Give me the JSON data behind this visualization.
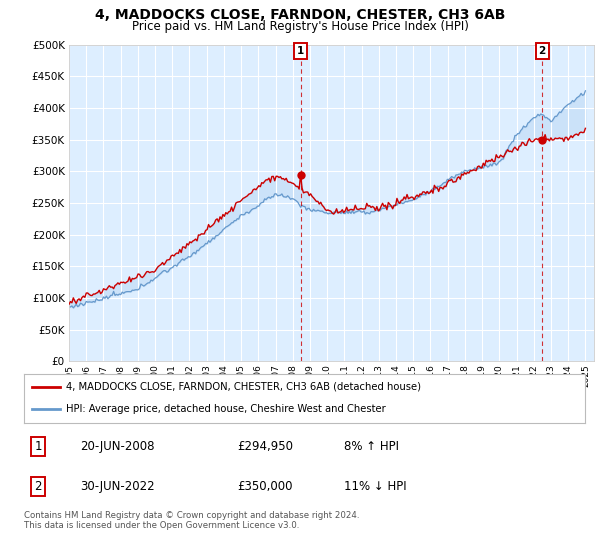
{
  "title": "4, MADDOCKS CLOSE, FARNDON, CHESTER, CH3 6AB",
  "subtitle": "Price paid vs. HM Land Registry's House Price Index (HPI)",
  "ytick_values": [
    0,
    50000,
    100000,
    150000,
    200000,
    250000,
    300000,
    350000,
    400000,
    450000,
    500000
  ],
  "ylim": [
    0,
    500000
  ],
  "xlim_start": 1995.0,
  "xlim_end": 2025.5,
  "background_color": "#ffffff",
  "plot_bg_color": "#ddeeff",
  "grid_color": "#ffffff",
  "fill_color": "#c8dcf0",
  "hpi_color": "#6699cc",
  "price_color": "#cc0000",
  "sale1_date": 2008.47,
  "sale1_price": 294950,
  "sale2_date": 2022.49,
  "sale2_price": 350000,
  "legend_line1": "4, MADDOCKS CLOSE, FARNDON, CHESTER, CH3 6AB (detached house)",
  "legend_line2": "HPI: Average price, detached house, Cheshire West and Chester",
  "footer": "Contains HM Land Registry data © Crown copyright and database right 2024.\nThis data is licensed under the Open Government Licence v3.0.",
  "table_row1": [
    "1",
    "20-JUN-2008",
    "£294,950",
    "8% ↑ HPI"
  ],
  "table_row2": [
    "2",
    "30-JUN-2022",
    "£350,000",
    "11% ↓ HPI"
  ],
  "xticks": [
    1995,
    1996,
    1997,
    1998,
    1999,
    2000,
    2001,
    2002,
    2003,
    2004,
    2005,
    2006,
    2007,
    2008,
    2009,
    2010,
    2011,
    2012,
    2013,
    2014,
    2015,
    2016,
    2017,
    2018,
    2019,
    2020,
    2021,
    2022,
    2023,
    2024,
    2025
  ]
}
